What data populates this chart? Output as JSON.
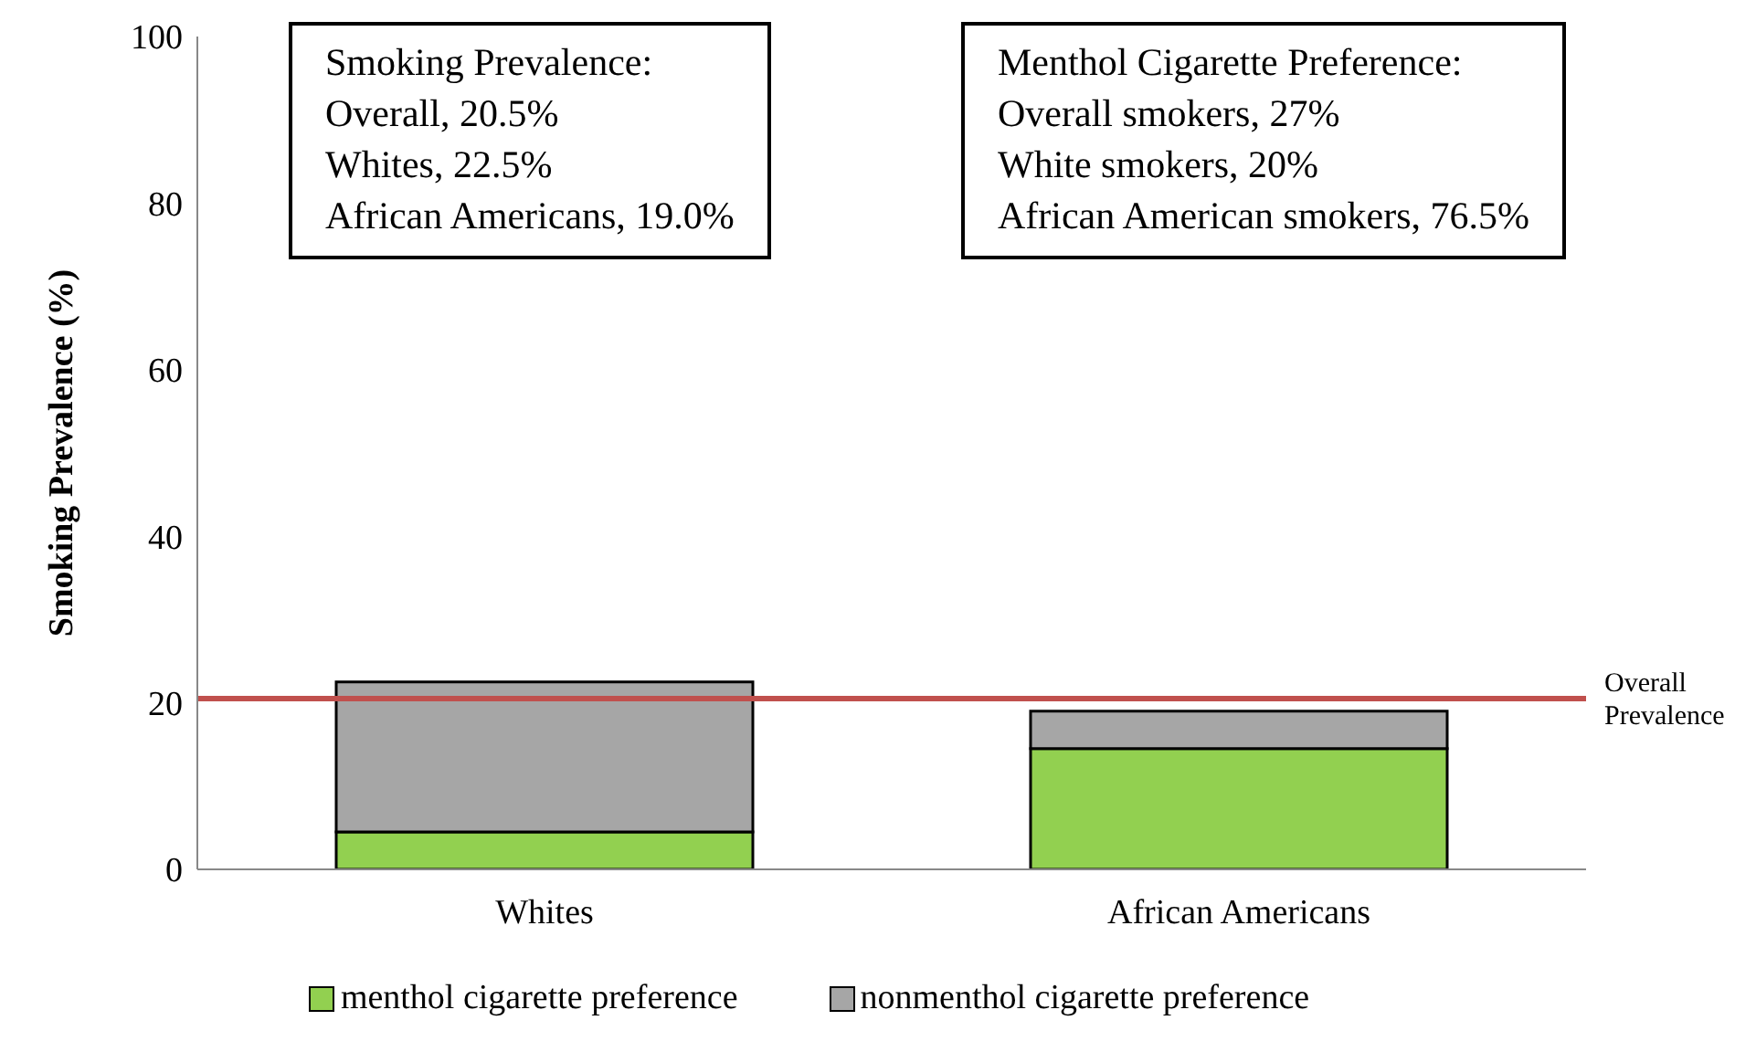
{
  "chart_data": {
    "type": "bar",
    "stacked": true,
    "ylabel": "Smoking Prevalence (%)",
    "categories": [
      "Whites",
      "African Americans"
    ],
    "series": [
      {
        "name": "menthol cigarette preference",
        "color": "#92d050",
        "values": [
          4.5,
          14.5
        ]
      },
      {
        "name": "nonmenthol cigarette preference",
        "color": "#a6a6a6",
        "values": [
          18,
          4.5
        ]
      }
    ],
    "ylim": [
      0,
      100
    ],
    "yticks": [
      0,
      20,
      40,
      60,
      80,
      100
    ],
    "grid": false,
    "legend": "bottom",
    "ref_lines": [
      {
        "axis": "y",
        "value": 20.5,
        "label": "Overall Prevalence",
        "color": "#c0504d"
      }
    ],
    "annotations": [
      "Smoking Prevalence:\nOverall, 20.5%\nWhites, 22.5%\nAfrican Americans, 19.0%",
      "Menthol Cigarette Preference:\nOverall smokers, 27%\nWhite smokers, 20%\nAfrican American smokers, 76.5%"
    ]
  }
}
